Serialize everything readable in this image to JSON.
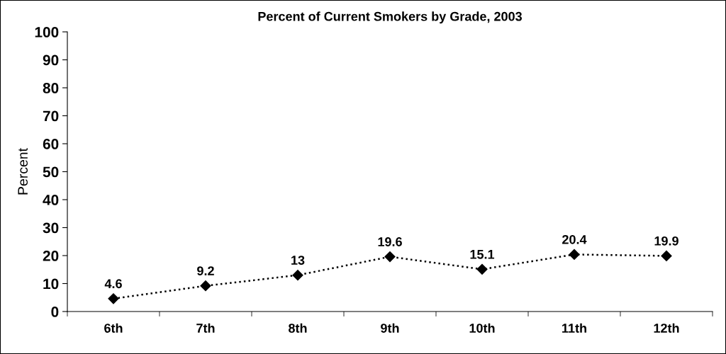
{
  "chart_data": {
    "type": "line",
    "title": "Percent of Current Smokers by Grade, 2003",
    "ylabel": "Percent",
    "categories": [
      "6th",
      "7th",
      "8th",
      "9th",
      "10th",
      "11th",
      "12th"
    ],
    "series": [
      {
        "color": "#000000",
        "values": [
          4.6,
          9.2,
          13,
          19.6,
          15.1,
          20.4,
          19.9
        ]
      }
    ],
    "ylim": [
      0,
      100
    ],
    "yticks": [
      0,
      10,
      20,
      30,
      40,
      50,
      60,
      70,
      80,
      90,
      100
    ],
    "grid": false,
    "legend": false,
    "marker": "diamond",
    "line_style": "dotted",
    "data_labels": true
  }
}
